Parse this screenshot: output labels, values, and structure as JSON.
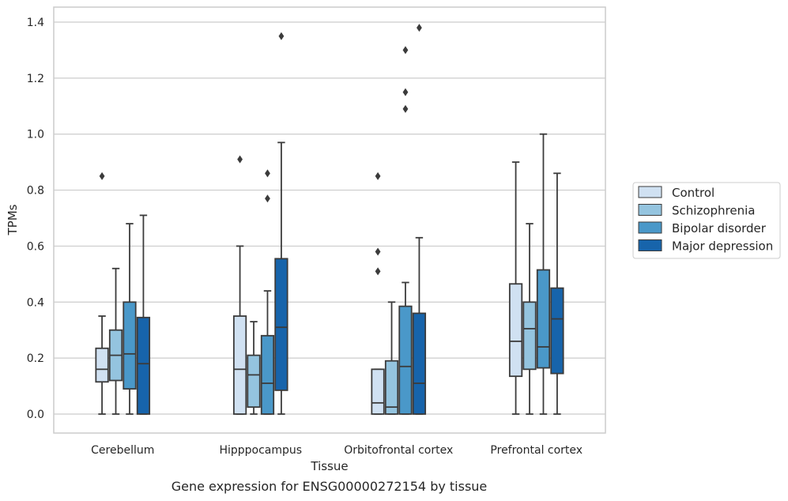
{
  "caption": "Gene expression for ENSG00000272154 by tissue",
  "chart_data": {
    "type": "box",
    "xlabel": "Tissue",
    "ylabel": "TPMs",
    "ylim": [
      -0.065,
      1.45
    ],
    "yticks": [
      0.0,
      0.2,
      0.4,
      0.6,
      0.8,
      1.0,
      1.2,
      1.4
    ],
    "ytick_labels": [
      "0.0",
      "0.2",
      "0.4",
      "0.6",
      "0.8",
      "1.0",
      "1.2",
      "1.4"
    ],
    "grid": "horizontal",
    "legend_position": "right",
    "categories": [
      "Cerebellum",
      "Hipppocampus",
      "Orbitofrontal cortex",
      "Prefrontal cortex"
    ],
    "series": [
      {
        "name": "Control",
        "color": "#d0e1f2",
        "boxes": [
          {
            "q1": 0.115,
            "median": 0.16,
            "q3": 0.235,
            "whisker_low": 0.0,
            "whisker_high": 0.35,
            "outliers": [
              0.85
            ]
          },
          {
            "q1": 0.0,
            "median": 0.16,
            "q3": 0.35,
            "whisker_low": 0.0,
            "whisker_high": 0.6,
            "outliers": [
              0.91
            ]
          },
          {
            "q1": 0.0,
            "median": 0.04,
            "q3": 0.16,
            "whisker_low": 0.0,
            "whisker_high": 0.16,
            "outliers": [
              0.51,
              0.58,
              0.85
            ]
          },
          {
            "q1": 0.135,
            "median": 0.26,
            "q3": 0.465,
            "whisker_low": 0.0,
            "whisker_high": 0.9,
            "outliers": []
          }
        ]
      },
      {
        "name": "Schizophrenia",
        "color": "#94c4df",
        "boxes": [
          {
            "q1": 0.12,
            "median": 0.21,
            "q3": 0.3,
            "whisker_low": 0.0,
            "whisker_high": 0.52,
            "outliers": []
          },
          {
            "q1": 0.025,
            "median": 0.14,
            "q3": 0.21,
            "whisker_low": 0.0,
            "whisker_high": 0.33,
            "outliers": []
          },
          {
            "q1": 0.0,
            "median": 0.025,
            "q3": 0.19,
            "whisker_low": 0.0,
            "whisker_high": 0.4,
            "outliers": []
          },
          {
            "q1": 0.16,
            "median": 0.305,
            "q3": 0.4,
            "whisker_low": 0.0,
            "whisker_high": 0.68,
            "outliers": []
          }
        ]
      },
      {
        "name": "Bipolar disorder",
        "color": "#4a98c9",
        "boxes": [
          {
            "q1": 0.09,
            "median": 0.215,
            "q3": 0.4,
            "whisker_low": 0.0,
            "whisker_high": 0.68,
            "outliers": []
          },
          {
            "q1": 0.0,
            "median": 0.11,
            "q3": 0.28,
            "whisker_low": 0.0,
            "whisker_high": 0.44,
            "outliers": [
              0.77,
              0.86
            ]
          },
          {
            "q1": 0.0,
            "median": 0.17,
            "q3": 0.385,
            "whisker_low": 0.0,
            "whisker_high": 0.47,
            "outliers": [
              1.09,
              1.15,
              1.3
            ]
          },
          {
            "q1": 0.165,
            "median": 0.24,
            "q3": 0.515,
            "whisker_low": 0.0,
            "whisker_high": 1.0,
            "outliers": []
          }
        ]
      },
      {
        "name": "Major depression",
        "color": "#1764ab",
        "boxes": [
          {
            "q1": 0.0,
            "median": 0.18,
            "q3": 0.345,
            "whisker_low": 0.0,
            "whisker_high": 0.71,
            "outliers": []
          },
          {
            "q1": 0.085,
            "median": 0.31,
            "q3": 0.555,
            "whisker_low": 0.0,
            "whisker_high": 0.97,
            "outliers": [
              1.35
            ]
          },
          {
            "q1": 0.0,
            "median": 0.11,
            "q3": 0.36,
            "whisker_low": 0.0,
            "whisker_high": 0.63,
            "outliers": [
              1.38
            ]
          },
          {
            "q1": 0.145,
            "median": 0.34,
            "q3": 0.45,
            "whisker_low": 0.0,
            "whisker_high": 0.86,
            "outliers": []
          }
        ]
      }
    ]
  }
}
